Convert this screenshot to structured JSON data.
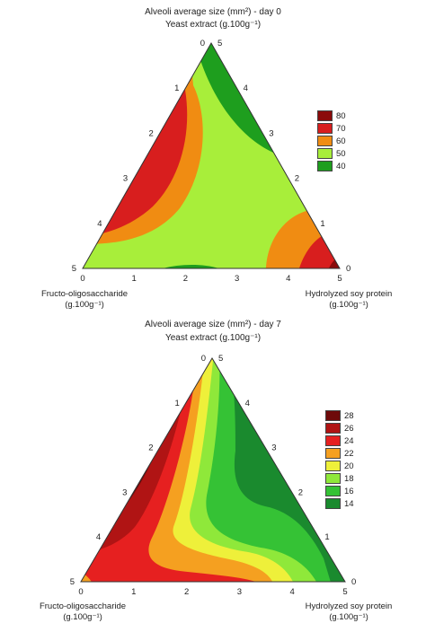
{
  "chart_data": [
    {
      "type": "ternary contour",
      "title": "Alveoli average size (mm²) - day 0",
      "top_label": "Yeast extract (g.100g⁻¹)",
      "left_label_line1": "Fructo-oligosaccharide",
      "left_label_line2": "(g.100g⁻¹)",
      "right_label_line1": "Hydrolyzed soy protein",
      "right_label_line2": "(g.100g⁻¹)",
      "axis_range": [
        0,
        5
      ],
      "ticks": [
        "0",
        "1",
        "2",
        "3",
        "4",
        "5"
      ],
      "legend": [
        {
          "label": "80",
          "color": "#8b0b0b"
        },
        {
          "label": "70",
          "color": "#d81e1e"
        },
        {
          "label": "60",
          "color": "#f08c12"
        },
        {
          "label": "50",
          "color": "#a8ee3a"
        },
        {
          "label": "40",
          "color": "#1e9e1e"
        }
      ]
    },
    {
      "type": "ternary contour",
      "title": "Alveoli average size (mm²) - day 7",
      "top_label": "Yeast extract (g.100g⁻¹)",
      "left_label_line1": "Fructo-oligosaccharide",
      "left_label_line2": "(g.100g⁻¹)",
      "right_label_line1": "Hydrolyzed soy protein",
      "right_label_line2": "(g.100g⁻¹)",
      "axis_range": [
        0,
        5
      ],
      "ticks": [
        "0",
        "1",
        "2",
        "3",
        "4",
        "5"
      ],
      "legend": [
        {
          "label": "28",
          "color": "#6e0a0a"
        },
        {
          "label": "26",
          "color": "#b01414"
        },
        {
          "label": "24",
          "color": "#e62020"
        },
        {
          "label": "22",
          "color": "#f5a020"
        },
        {
          "label": "20",
          "color": "#eef03a"
        },
        {
          "label": "18",
          "color": "#8fe83a"
        },
        {
          "label": "16",
          "color": "#35c235"
        },
        {
          "label": "14",
          "color": "#1a8a2e"
        }
      ]
    }
  ]
}
